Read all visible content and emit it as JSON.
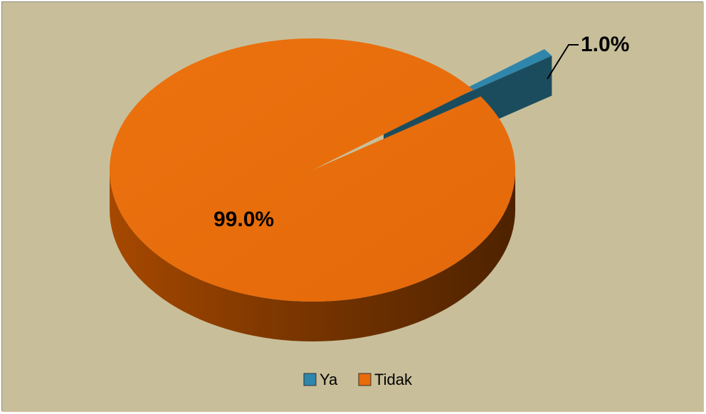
{
  "chart_data": {
    "type": "pie",
    "style": "3d-exploded",
    "title": "",
    "categories": [
      "Ya",
      "Tidak"
    ],
    "values": [
      1.0,
      99.0
    ],
    "data_labels": [
      "1.0%",
      "99.0%"
    ],
    "series": [
      {
        "name": "Ya",
        "value": 1.0,
        "label": "1.0%",
        "color": "#2E86AB"
      },
      {
        "name": "Tidak",
        "value": 99.0,
        "label": "99.0%",
        "color": "#E96B0A"
      }
    ],
    "legend_position": "bottom",
    "background_color": "#C8BF9A"
  }
}
